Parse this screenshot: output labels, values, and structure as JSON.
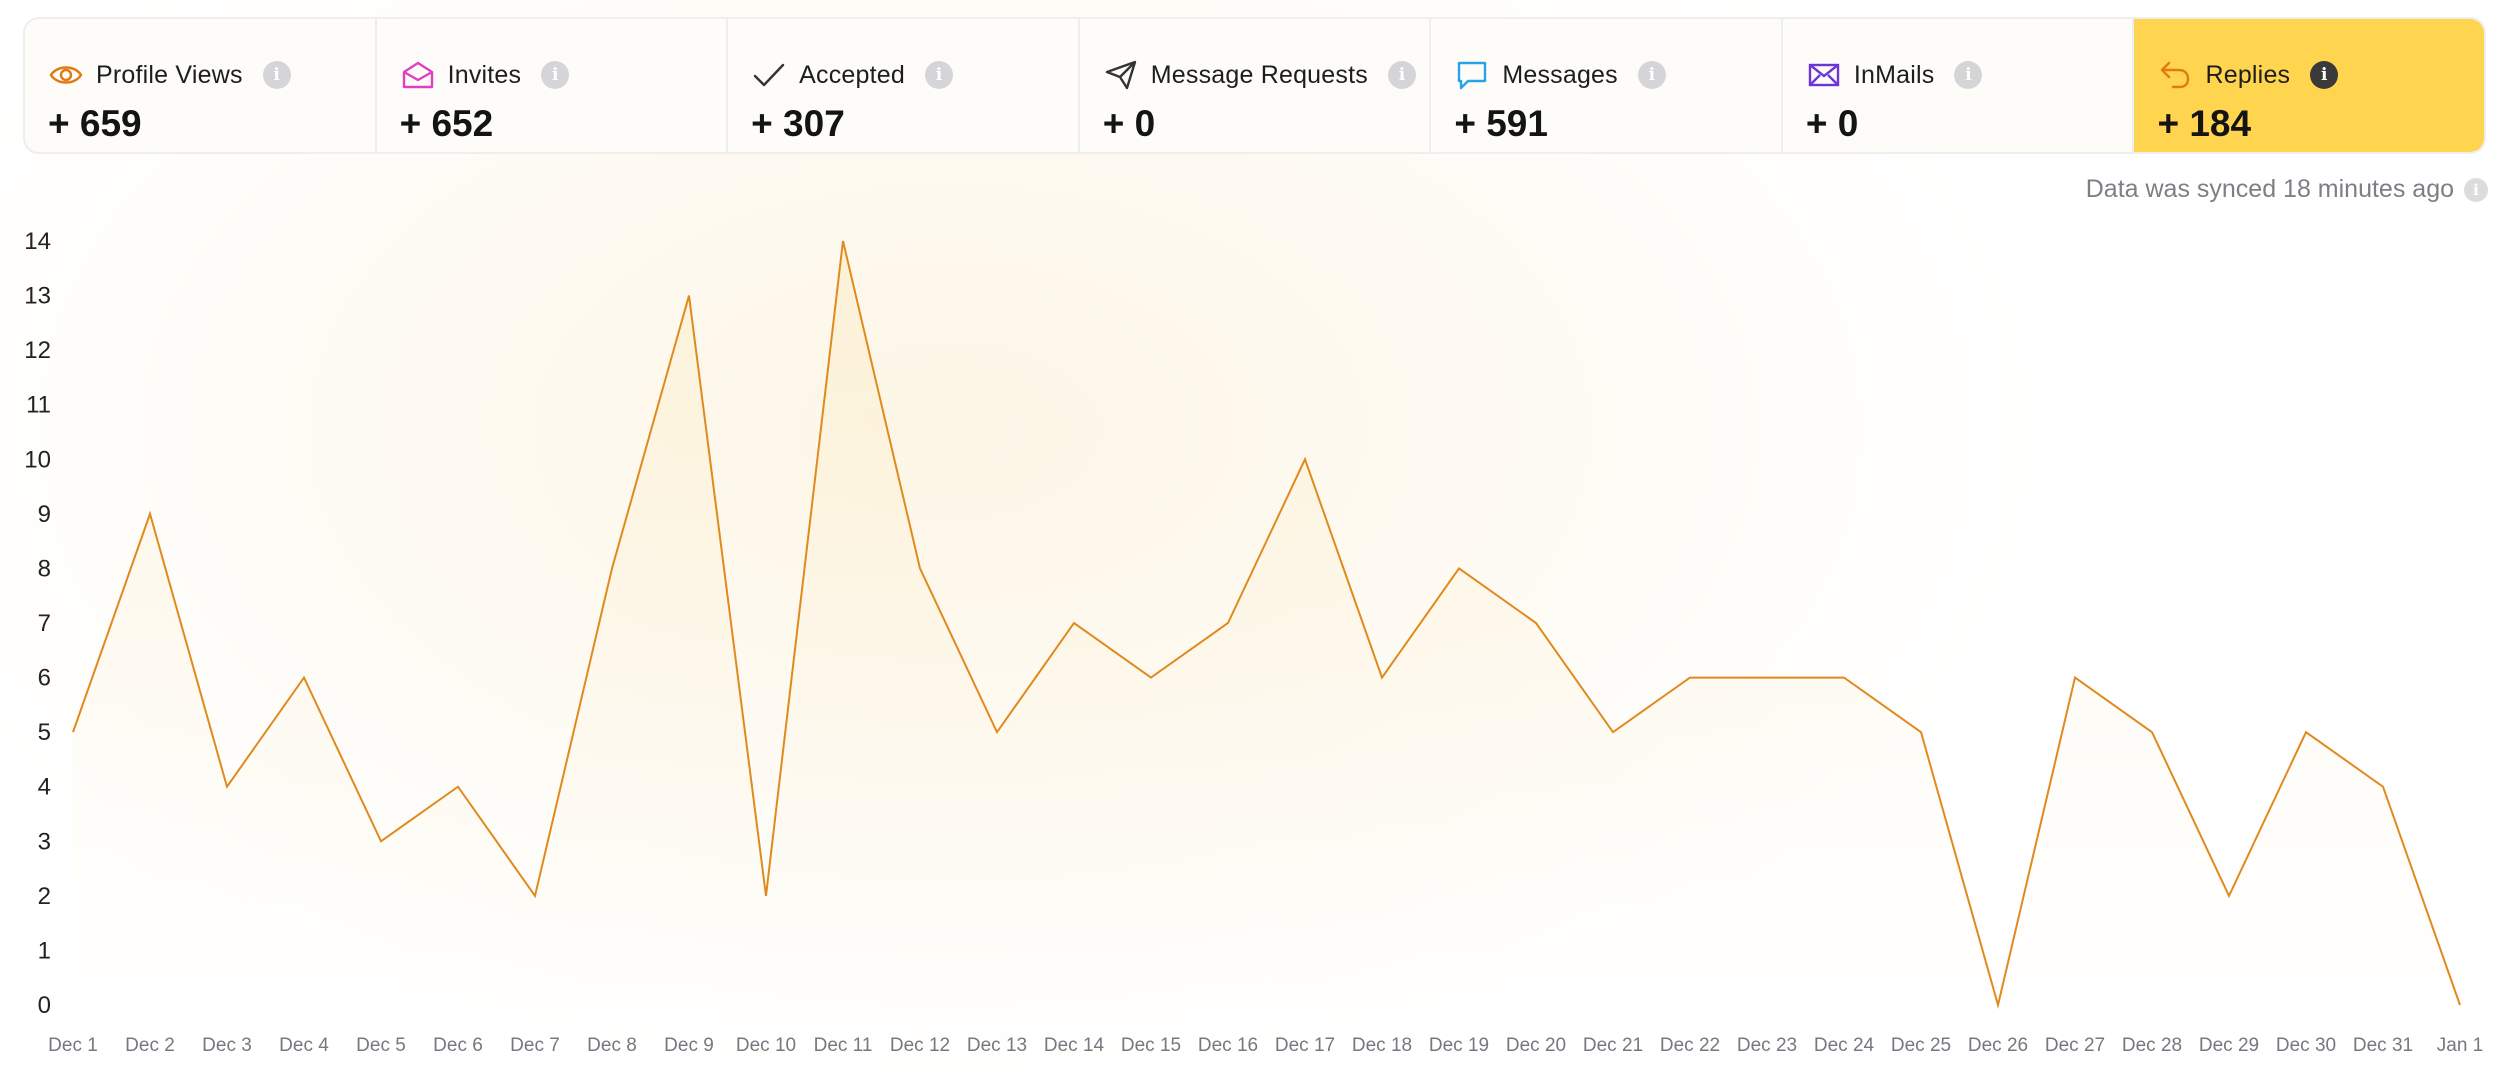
{
  "stats": [
    {
      "id": "profile-views",
      "label": "Profile Views",
      "value": "+ 659",
      "icon": "eye-icon",
      "color": "#e07b12",
      "active": false
    },
    {
      "id": "invites",
      "label": "Invites",
      "value": "+ 652",
      "icon": "envelope-open-icon",
      "color": "#e03fc4",
      "active": false
    },
    {
      "id": "accepted",
      "label": "Accepted",
      "value": "+ 307",
      "icon": "checkmark-icon",
      "color": "#333333",
      "active": false
    },
    {
      "id": "message-requests",
      "label": "Message Requests",
      "value": "+ 0",
      "icon": "paper-plane-icon",
      "color": "#333333",
      "active": false
    },
    {
      "id": "messages",
      "label": "Messages",
      "value": "+ 591",
      "icon": "chat-bubble-icon",
      "color": "#2aa3e6",
      "active": false
    },
    {
      "id": "inmails",
      "label": "InMails",
      "value": "+ 0",
      "icon": "mail-icon",
      "color": "#6a35d9",
      "active": false
    },
    {
      "id": "replies",
      "label": "Replies",
      "value": "+ 184",
      "icon": "reply-arrow-icon",
      "color": "#e07b12",
      "active": true
    }
  ],
  "sync_text": "Data was synced 18 minutes ago",
  "chart_data": {
    "type": "area",
    "categories": [
      "Dec 1",
      "Dec 2",
      "Dec 3",
      "Dec 4",
      "Dec 5",
      "Dec 6",
      "Dec 7",
      "Dec 8",
      "Dec 9",
      "Dec 10",
      "Dec 11",
      "Dec 12",
      "Dec 13",
      "Dec 14",
      "Dec 15",
      "Dec 16",
      "Dec 17",
      "Dec 18",
      "Dec 19",
      "Dec 20",
      "Dec 21",
      "Dec 22",
      "Dec 23",
      "Dec 24",
      "Dec 25",
      "Dec 26",
      "Dec 27",
      "Dec 28",
      "Dec 29",
      "Dec 30",
      "Dec 31",
      "Jan 1"
    ],
    "series": [
      {
        "values": [
          5,
          9,
          4,
          6,
          3,
          4,
          2,
          8,
          13,
          2,
          14,
          8,
          5,
          7,
          6,
          7,
          10,
          6,
          8,
          7,
          5,
          6,
          6,
          6,
          5,
          0,
          6,
          5,
          2,
          5,
          4,
          0
        ]
      }
    ],
    "ylim": [
      0,
      14
    ],
    "yticks": [
      0,
      1,
      2,
      3,
      4,
      5,
      6,
      7,
      8,
      9,
      10,
      11,
      12,
      13,
      14
    ],
    "line_color": "#e08a1e",
    "grid": false,
    "legend": "none"
  }
}
